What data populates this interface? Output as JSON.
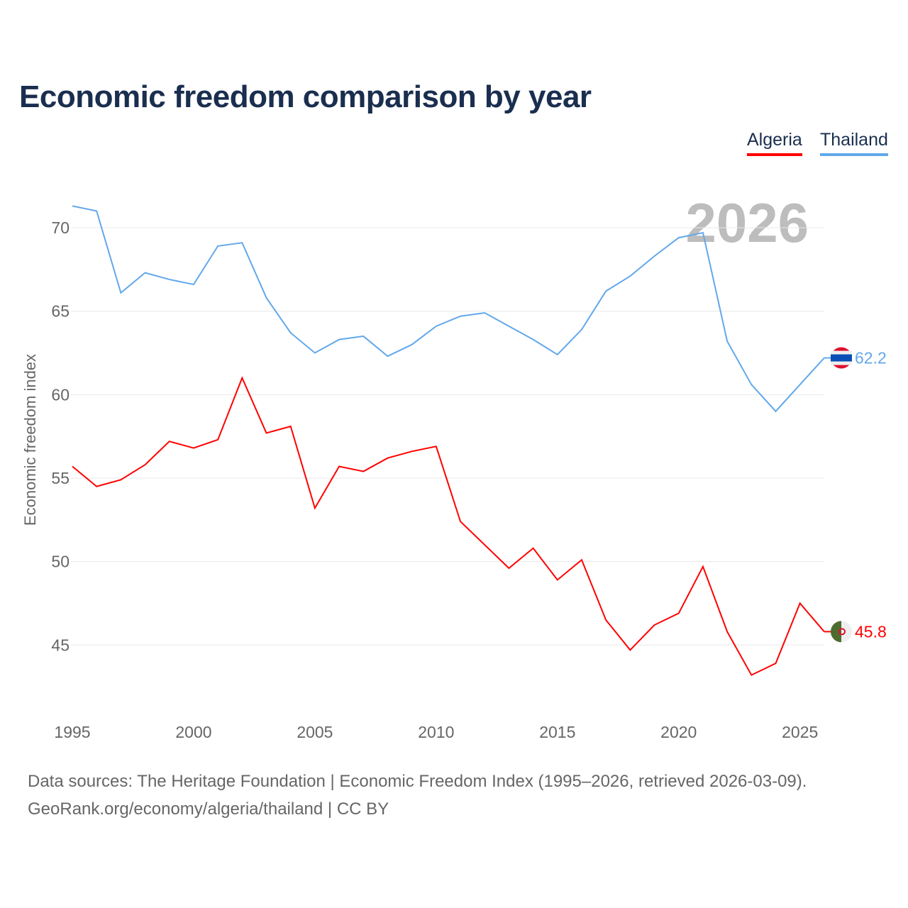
{
  "chart_data": {
    "type": "line",
    "title": "Economic freedom comparison by year",
    "ylabel": "Economic freedom index",
    "xlabel": "",
    "year_overlay": "2026",
    "xlim": [
      1995,
      2026
    ],
    "ylim": [
      42,
      72
    ],
    "x_ticks": [
      "1995",
      "2000",
      "2005",
      "2010",
      "2015",
      "2020",
      "2025"
    ],
    "y_ticks": [
      "45",
      "50",
      "55",
      "60",
      "65",
      "70"
    ],
    "grid": true,
    "legend_position": "top-right",
    "x": [
      1995,
      1996,
      1997,
      1998,
      1999,
      2000,
      2001,
      2002,
      2003,
      2004,
      2005,
      2006,
      2007,
      2008,
      2009,
      2010,
      2011,
      2012,
      2013,
      2014,
      2015,
      2016,
      2017,
      2018,
      2019,
      2020,
      2021,
      2022,
      2023,
      2024,
      2025,
      2026
    ],
    "series": [
      {
        "name": "Algeria",
        "color": "#ff0000",
        "end_label": "45.8",
        "flag": "algeria-flag",
        "values": [
          55.7,
          54.5,
          54.9,
          55.8,
          57.2,
          56.8,
          57.3,
          61.0,
          57.7,
          58.1,
          53.2,
          55.7,
          55.4,
          56.2,
          56.6,
          56.9,
          52.4,
          51.0,
          49.6,
          50.8,
          48.9,
          50.1,
          46.5,
          44.7,
          46.2,
          46.9,
          49.7,
          45.8,
          43.2,
          43.9,
          47.5,
          45.8
        ]
      },
      {
        "name": "Thailand",
        "color": "#62a8ea",
        "end_label": "62.2",
        "flag": "thailand-flag",
        "values": [
          71.3,
          71.0,
          66.1,
          67.3,
          66.9,
          66.6,
          68.9,
          69.1,
          65.8,
          63.7,
          62.5,
          63.3,
          63.5,
          62.3,
          63.0,
          64.1,
          64.7,
          64.9,
          64.1,
          63.3,
          62.4,
          63.9,
          66.2,
          67.1,
          68.3,
          69.4,
          69.7,
          63.2,
          60.6,
          59.0,
          60.6,
          62.2
        ]
      }
    ]
  },
  "footer": {
    "line1": "Data sources: The Heritage Foundation | Economic Freedom Index (1995–2026, retrieved 2026-03-09).",
    "line2": "GeoRank.org/economy/algeria/thailand | CC BY"
  }
}
